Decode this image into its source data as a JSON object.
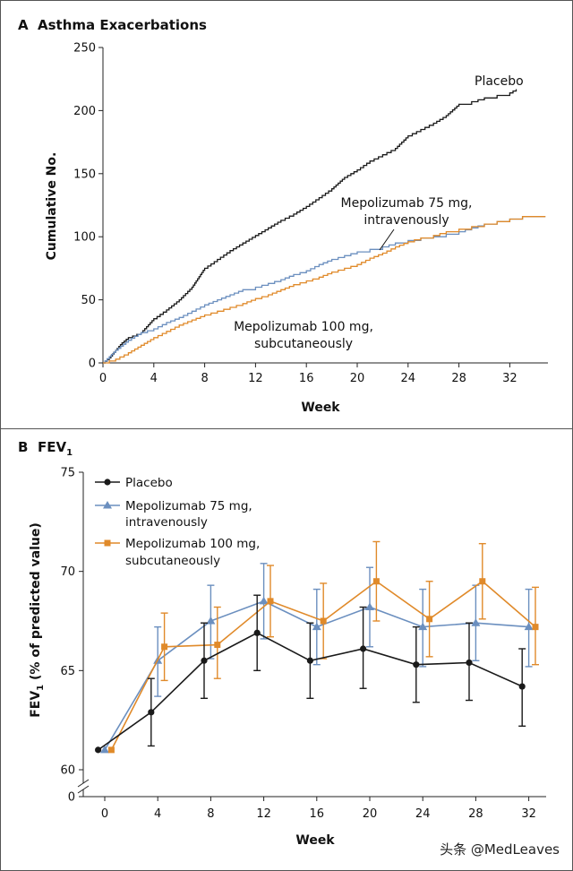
{
  "panel_a": {
    "letter": "A",
    "title": "Asthma Exacerbations",
    "ylabel": "Cumulative No.",
    "xlabel": "Week",
    "yticks": [
      0,
      50,
      100,
      150,
      200,
      250
    ],
    "xticks": [
      0,
      4,
      8,
      12,
      16,
      20,
      24,
      28,
      32
    ],
    "labels": {
      "placebo": "Placebo",
      "iv_line1": "Mepolizumab 75 mg,",
      "iv_line2": "intravenously",
      "sc_line1": "Mepolizumab 100 mg,",
      "sc_line2": "subcutaneously"
    }
  },
  "panel_b": {
    "letter": "B",
    "title_main": "FEV",
    "title_sub": "1",
    "ylabel_pre": "FEV",
    "ylabel_sub": "1",
    "ylabel_post": " (% of predicted value)",
    "xlabel": "Week",
    "yticks": [
      60,
      65,
      70,
      75
    ],
    "ytick_zero": "0",
    "xticks": [
      0,
      4,
      8,
      12,
      16,
      20,
      24,
      28,
      32
    ],
    "legend": {
      "placebo": "Placebo",
      "iv_line1": "Mepolizumab 75 mg,",
      "iv_line2": "intravenously",
      "sc_line1": "Mepolizumab 100 mg,",
      "sc_line2": "subcutaneously"
    }
  },
  "colors": {
    "placebo": "#1a1a1a",
    "iv": "#6b8fbf",
    "sc": "#e08a2a",
    "frame": "#555555"
  },
  "watermark": "头条 @MedLeaves",
  "chart_data": [
    {
      "type": "line",
      "title": "Asthma Exacerbations",
      "xlabel": "Week",
      "ylabel": "Cumulative No.",
      "xlim": [
        0,
        35
      ],
      "ylim": [
        0,
        250
      ],
      "series": [
        {
          "name": "Placebo",
          "x": [
            0,
            0.5,
            1,
            1.5,
            2,
            3,
            4,
            5,
            6,
            6.5,
            7,
            8,
            9,
            10,
            11,
            12,
            13,
            14,
            15,
            16,
            17,
            18,
            19,
            20,
            21,
            22,
            23,
            24,
            25,
            26,
            27,
            28,
            29,
            30,
            31,
            32,
            32.5
          ],
          "y": [
            0,
            4,
            10,
            16,
            20,
            24,
            35,
            42,
            50,
            55,
            60,
            75,
            82,
            89,
            95,
            101,
            107,
            113,
            118,
            124,
            131,
            138,
            147,
            153,
            160,
            165,
            170,
            180,
            185,
            190,
            196,
            205,
            207,
            210,
            212,
            214,
            217
          ]
        },
        {
          "name": "Mepolizumab 75 mg, intravenously",
          "x": [
            0,
            0.5,
            1,
            2,
            3,
            4,
            5,
            6,
            7,
            8,
            9,
            10,
            11,
            12,
            13,
            14,
            15,
            16,
            17,
            18,
            19,
            20,
            21,
            22,
            23,
            24,
            25,
            26,
            27,
            28,
            29,
            30,
            31,
            32,
            33,
            34.8
          ],
          "y": [
            0,
            5,
            10,
            18,
            24,
            27,
            32,
            36,
            41,
            46,
            50,
            54,
            58,
            60,
            63,
            66,
            70,
            73,
            78,
            82,
            85,
            88,
            90,
            92,
            95,
            97,
            99,
            100,
            102,
            104,
            107,
            110,
            112,
            114,
            116,
            116
          ]
        },
        {
          "name": "Mepolizumab 100 mg, subcutaneously",
          "x": [
            0,
            1,
            2,
            3,
            4,
            5,
            6,
            7,
            8,
            9,
            10,
            11,
            12,
            13,
            14,
            15,
            16,
            17,
            18,
            19,
            20,
            21,
            22,
            23,
            24,
            25,
            26,
            27,
            28,
            29,
            30,
            31,
            32,
            33,
            34.8
          ],
          "y": [
            0,
            3,
            8,
            14,
            20,
            25,
            30,
            34,
            38,
            41,
            44,
            47,
            51,
            54,
            58,
            62,
            65,
            68,
            72,
            75,
            78,
            83,
            87,
            92,
            96,
            99,
            101,
            104,
            106,
            108,
            110,
            112,
            114,
            116,
            116
          ]
        }
      ]
    },
    {
      "type": "line",
      "title": "FEV1",
      "xlabel": "Week",
      "ylabel": "FEV1 (% of predicted value)",
      "ylim": [
        60,
        75
      ],
      "ybreak": true,
      "x": [
        0,
        4,
        8,
        12,
        16,
        20,
        24,
        28,
        32
      ],
      "series": [
        {
          "name": "Placebo",
          "x": [
            -0.5,
            3.5,
            7.5,
            11.5,
            15.5,
            19.5,
            23.5,
            27.5,
            31.5
          ],
          "values": [
            61.0,
            62.9,
            65.5,
            66.9,
            65.5,
            66.1,
            65.3,
            65.4,
            64.2
          ],
          "err_low": [
            61.0,
            61.2,
            63.6,
            65.0,
            63.6,
            64.1,
            63.4,
            63.5,
            62.2
          ],
          "err_high": [
            61.0,
            64.6,
            67.4,
            68.8,
            67.4,
            68.2,
            67.2,
            67.4,
            66.1
          ]
        },
        {
          "name": "Mepolizumab 75 mg, intravenously",
          "x": [
            0,
            4,
            8,
            12,
            16,
            20,
            24,
            28,
            32
          ],
          "values": [
            61.0,
            65.5,
            67.5,
            68.5,
            67.2,
            68.2,
            67.2,
            67.4,
            67.2
          ],
          "err_low": [
            61.0,
            63.7,
            65.6,
            66.6,
            65.3,
            66.2,
            65.2,
            65.5,
            65.2
          ],
          "err_high": [
            61.0,
            67.2,
            69.3,
            70.4,
            69.1,
            70.2,
            69.1,
            69.3,
            69.1
          ]
        },
        {
          "name": "Mepolizumab 100 mg, subcutaneously",
          "x": [
            0.5,
            4.5,
            8.5,
            12.5,
            16.5,
            20.5,
            24.5,
            28.5,
            32.5
          ],
          "values": [
            61.0,
            66.2,
            66.3,
            68.5,
            67.5,
            69.5,
            67.6,
            69.5,
            67.2
          ],
          "err_low": [
            61.0,
            64.5,
            64.6,
            66.7,
            65.6,
            67.5,
            65.7,
            67.6,
            65.3
          ],
          "err_high": [
            61.0,
            67.9,
            68.2,
            70.3,
            69.4,
            71.5,
            69.5,
            71.4,
            69.2
          ]
        }
      ]
    }
  ]
}
